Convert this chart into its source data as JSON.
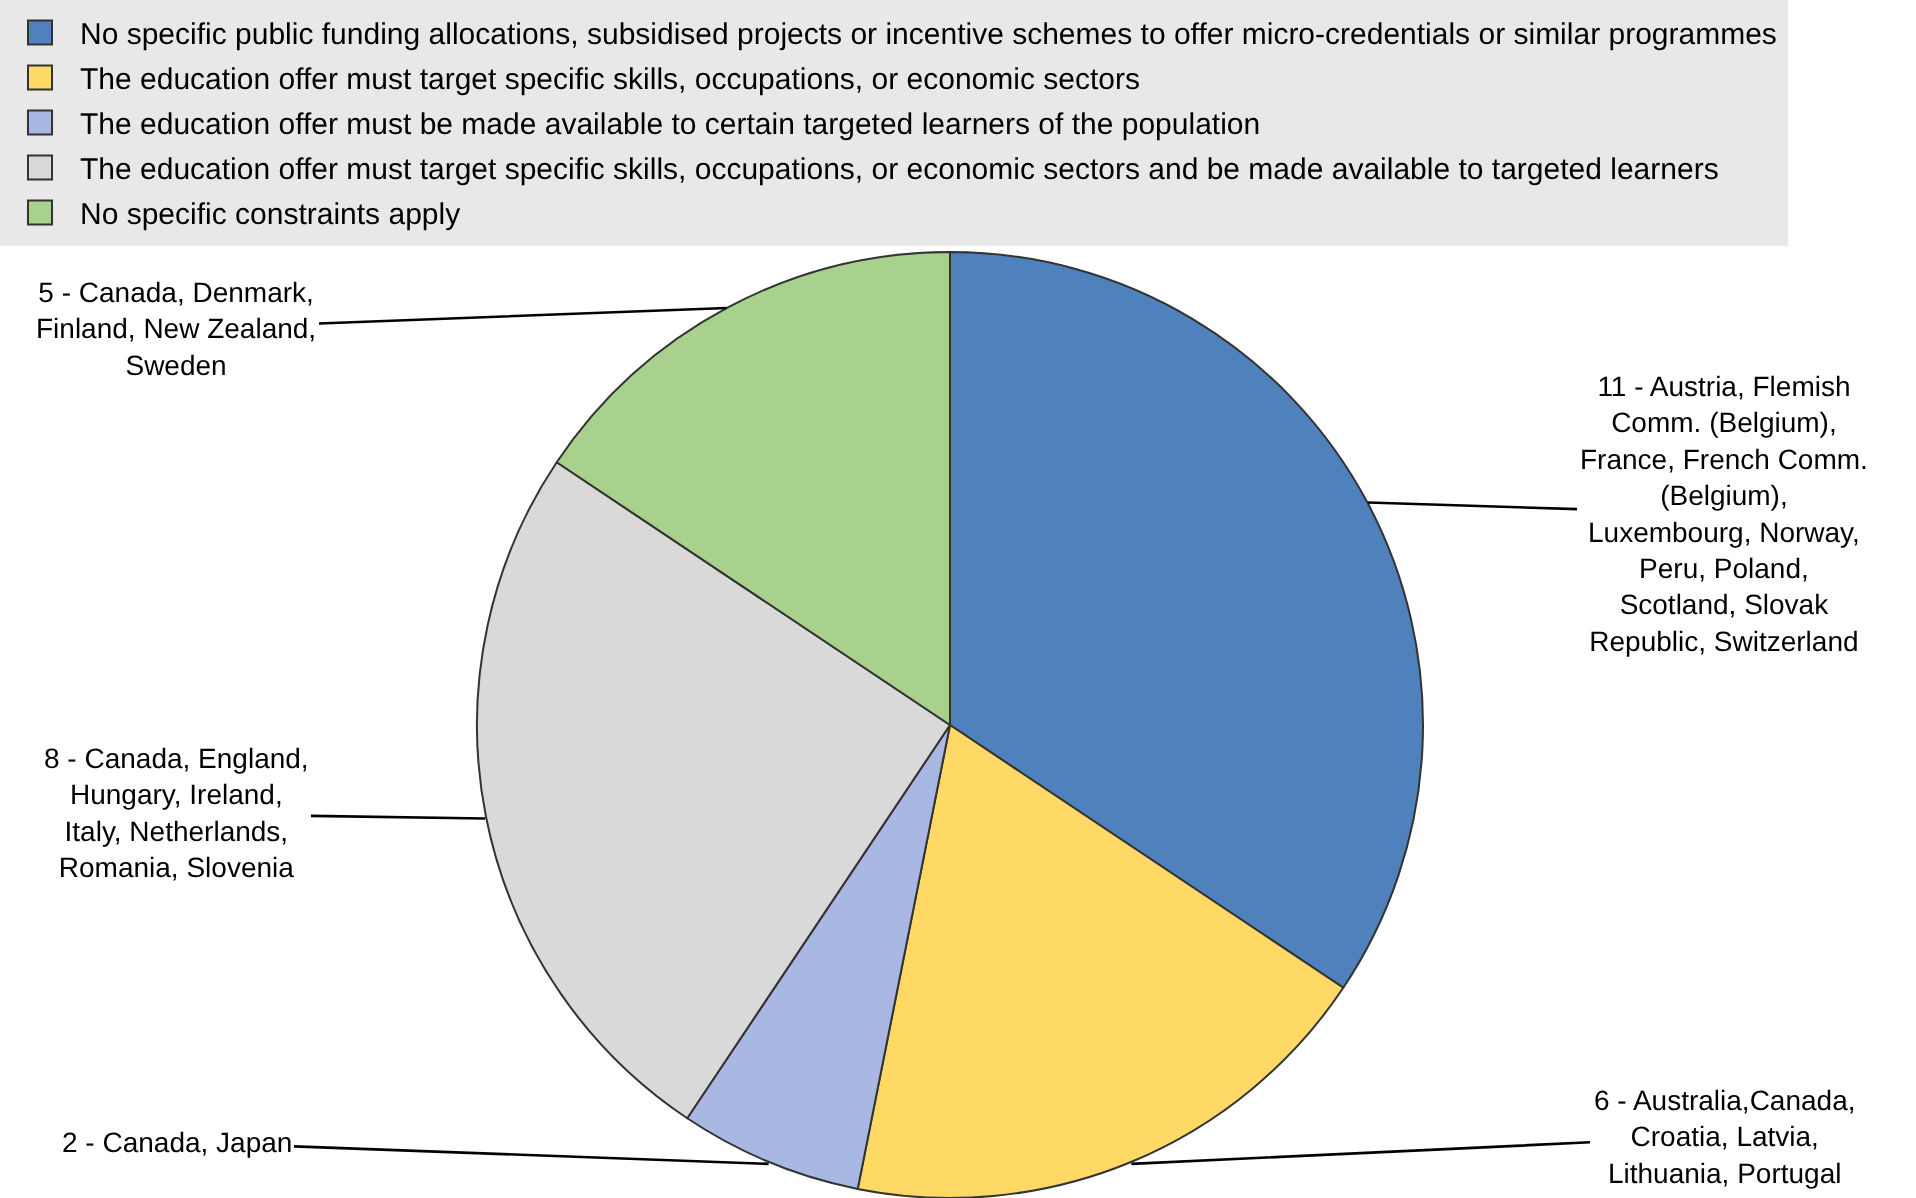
{
  "chart_data": {
    "type": "pie",
    "categories": [
      "No specific public funding allocations, subsidised projects or incentive schemes to offer micro-credentials or similar programmes",
      "The education offer must target specific skills, occupations, or economic sectors",
      "The education offer must be made available to certain targeted learners of the population",
      "The education offer must target specific skills, occupations, or economic sectors and be made available to targeted learners",
      "No specific constraints apply"
    ],
    "values": [
      11,
      6,
      2,
      8,
      5
    ],
    "colors": [
      "#4f81bd",
      "#ffd966",
      "#a9b8e3",
      "#d9d9d9",
      "#a9d18e"
    ],
    "value_labels": [
      "11 - Austria, Flemish Comm. (Belgium), France, French Comm. (Belgium), Luxembourg, Norway, Peru, Poland, Scotland, Slovak Republic, Switzerland",
      "6 - Australia,Canada, Croatia, Latvia, Lithuania, Portugal",
      "2 - Canada, Japan",
      "8 - Canada, England, Hungary, Ireland, Italy, Netherlands, Romania, Slovenia",
      "5 - Canada, Denmark, Finland, New Zealand, Sweden"
    ],
    "legend": "top"
  }
}
